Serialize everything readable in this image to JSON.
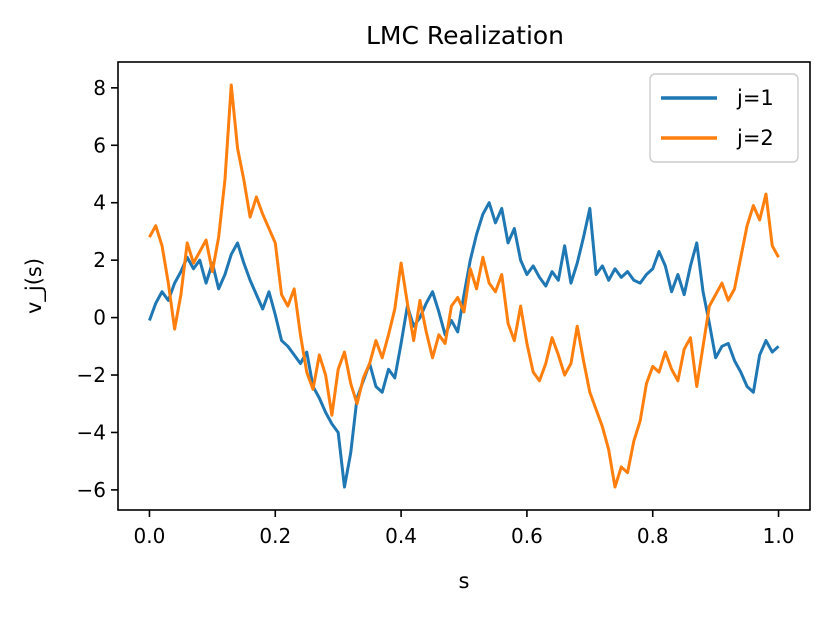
{
  "chart_data": {
    "type": "line",
    "title": "LMC Realization",
    "xlabel": "s",
    "ylabel": "v_j(s)",
    "xlim": [
      -0.05,
      1.05
    ],
    "ylim": [
      -6.7,
      8.9
    ],
    "grid": false,
    "legend_position": "top-right",
    "x_ticks": [
      0.0,
      0.2,
      0.4,
      0.6,
      0.8,
      1.0
    ],
    "x_tick_labels": [
      "0.0",
      "0.2",
      "0.4",
      "0.6",
      "0.8",
      "1.0"
    ],
    "y_ticks": [
      -6,
      -4,
      -2,
      0,
      2,
      4,
      6,
      8
    ],
    "y_tick_labels": [
      "−6",
      "−4",
      "−2",
      "0",
      "2",
      "4",
      "6",
      "8"
    ],
    "series": [
      {
        "name": "j=1",
        "color": "#1f77b4",
        "x": [
          0.0,
          0.01,
          0.02,
          0.03,
          0.04,
          0.05,
          0.06,
          0.07,
          0.08,
          0.09,
          0.1,
          0.11,
          0.12,
          0.13,
          0.14,
          0.15,
          0.16,
          0.17,
          0.18,
          0.19,
          0.2,
          0.21,
          0.22,
          0.23,
          0.24,
          0.25,
          0.26,
          0.27,
          0.28,
          0.29,
          0.3,
          0.31,
          0.32,
          0.33,
          0.34,
          0.35,
          0.36,
          0.37,
          0.38,
          0.39,
          0.4,
          0.41,
          0.42,
          0.43,
          0.44,
          0.45,
          0.46,
          0.47,
          0.48,
          0.49,
          0.5,
          0.51,
          0.52,
          0.53,
          0.54,
          0.55,
          0.56,
          0.57,
          0.58,
          0.59,
          0.6,
          0.61,
          0.62,
          0.63,
          0.64,
          0.65,
          0.66,
          0.67,
          0.68,
          0.69,
          0.7,
          0.71,
          0.72,
          0.73,
          0.74,
          0.75,
          0.76,
          0.77,
          0.78,
          0.79,
          0.8,
          0.81,
          0.82,
          0.83,
          0.84,
          0.85,
          0.86,
          0.87,
          0.88,
          0.89,
          0.9,
          0.91,
          0.92,
          0.93,
          0.94,
          0.95,
          0.96,
          0.97,
          0.98,
          0.99,
          1.0
        ],
        "values": [
          -0.1,
          0.5,
          0.9,
          0.6,
          1.2,
          1.6,
          2.1,
          1.7,
          2.0,
          1.2,
          1.9,
          1.0,
          1.5,
          2.2,
          2.6,
          1.9,
          1.3,
          0.8,
          0.3,
          0.9,
          0.1,
          -0.8,
          -1.0,
          -1.3,
          -1.6,
          -1.2,
          -2.4,
          -2.8,
          -3.3,
          -3.7,
          -4.0,
          -5.9,
          -4.7,
          -2.8,
          -2.2,
          -1.6,
          -2.4,
          -2.6,
          -1.8,
          -2.1,
          -0.9,
          0.4,
          -0.3,
          0.0,
          0.5,
          0.9,
          0.2,
          -0.6,
          -0.1,
          -0.5,
          0.8,
          2.0,
          2.9,
          3.6,
          4.0,
          3.3,
          3.8,
          2.6,
          3.1,
          2.0,
          1.5,
          1.8,
          1.4,
          1.1,
          1.6,
          1.3,
          2.5,
          1.2,
          1.9,
          2.8,
          3.8,
          1.5,
          1.8,
          1.3,
          1.7,
          1.4,
          1.6,
          1.3,
          1.2,
          1.5,
          1.7,
          2.3,
          1.8,
          0.9,
          1.5,
          0.8,
          1.8,
          2.6,
          0.9,
          -0.2,
          -1.4,
          -1.0,
          -0.9,
          -1.5,
          -1.9,
          -2.4,
          -2.6,
          -1.3,
          -0.8,
          -1.2,
          -1.0
        ]
      },
      {
        "name": "j=2",
        "color": "#ff7f0e",
        "x": [
          0.0,
          0.01,
          0.02,
          0.03,
          0.04,
          0.05,
          0.06,
          0.07,
          0.08,
          0.09,
          0.1,
          0.11,
          0.12,
          0.13,
          0.14,
          0.15,
          0.16,
          0.17,
          0.18,
          0.19,
          0.2,
          0.21,
          0.22,
          0.23,
          0.24,
          0.25,
          0.26,
          0.27,
          0.28,
          0.29,
          0.3,
          0.31,
          0.32,
          0.33,
          0.34,
          0.35,
          0.36,
          0.37,
          0.38,
          0.39,
          0.4,
          0.41,
          0.42,
          0.43,
          0.44,
          0.45,
          0.46,
          0.47,
          0.48,
          0.49,
          0.5,
          0.51,
          0.52,
          0.53,
          0.54,
          0.55,
          0.56,
          0.57,
          0.58,
          0.59,
          0.6,
          0.61,
          0.62,
          0.63,
          0.64,
          0.65,
          0.66,
          0.67,
          0.68,
          0.69,
          0.7,
          0.71,
          0.72,
          0.73,
          0.74,
          0.75,
          0.76,
          0.77,
          0.78,
          0.79,
          0.8,
          0.81,
          0.82,
          0.83,
          0.84,
          0.85,
          0.86,
          0.87,
          0.88,
          0.89,
          0.9,
          0.91,
          0.92,
          0.93,
          0.94,
          0.95,
          0.96,
          0.97,
          0.98,
          0.99,
          1.0
        ],
        "values": [
          2.8,
          3.2,
          2.5,
          1.2,
          -0.4,
          0.8,
          2.6,
          1.9,
          2.3,
          2.7,
          1.6,
          2.8,
          4.8,
          8.1,
          5.9,
          4.8,
          3.5,
          4.2,
          3.6,
          3.1,
          2.6,
          0.8,
          0.4,
          1.0,
          -0.6,
          -1.9,
          -2.5,
          -1.3,
          -2.0,
          -3.4,
          -1.8,
          -1.2,
          -2.3,
          -3.0,
          -2.1,
          -1.6,
          -0.8,
          -1.4,
          -0.6,
          0.3,
          1.9,
          0.5,
          -0.8,
          0.6,
          -0.5,
          -1.4,
          -0.6,
          -0.9,
          0.4,
          0.7,
          0.2,
          1.7,
          1.0,
          2.1,
          1.2,
          0.9,
          1.5,
          -0.2,
          -0.8,
          0.4,
          -0.9,
          -1.9,
          -2.2,
          -1.6,
          -0.7,
          -1.3,
          -2.0,
          -1.6,
          -0.3,
          -1.5,
          -2.6,
          -3.2,
          -3.8,
          -4.6,
          -5.9,
          -5.2,
          -5.4,
          -4.3,
          -3.6,
          -2.3,
          -1.7,
          -1.9,
          -1.2,
          -1.8,
          -2.2,
          -1.1,
          -0.7,
          -2.4,
          -1.0,
          0.4,
          0.8,
          1.2,
          0.6,
          1.0,
          2.1,
          3.2,
          3.9,
          3.4,
          4.3,
          2.5,
          2.1
        ]
      }
    ]
  }
}
